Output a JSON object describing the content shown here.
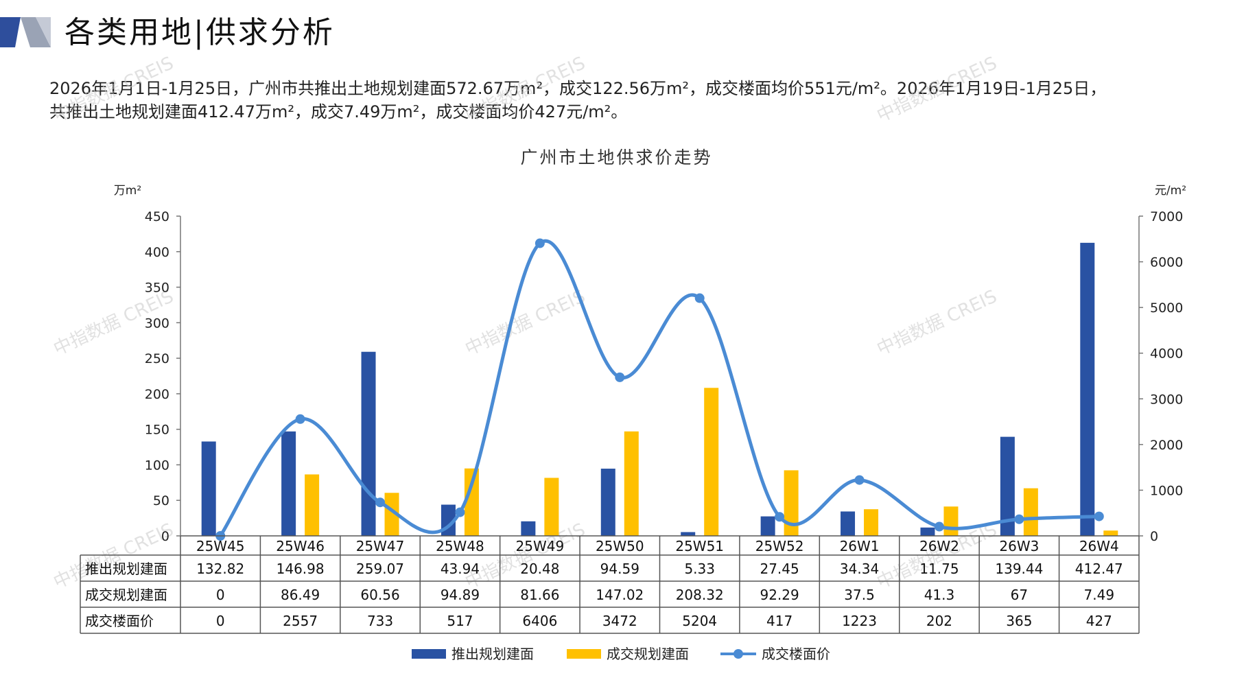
{
  "header": {
    "title": "各类用地|供求分析",
    "summary_line1": "2026年1月1日-1月25日，广州市共推出土地规划建面572.67万m²，成交122.56万m²，成交楼面均价551元/m²。2026年1月19日-1月25日，",
    "summary_line2": "共推出土地规划建面412.47万m²，成交7.49万m²，成交楼面均价427元/m²。"
  },
  "watermark": "中指数据 CREIS",
  "colors": {
    "supply_bar": "#2952A3",
    "deal_bar": "#FFC000",
    "price_line": "#4A8BD4",
    "header_dark": "#2E4E9C",
    "header_grey": "#9AA3B5",
    "grid": "#555555"
  },
  "chart_data": {
    "type": "bar",
    "title": "广州市土地供求价走势",
    "left_unit": "万m²",
    "right_unit": "元/m²",
    "categories": [
      "25W45",
      "25W46",
      "25W47",
      "25W48",
      "25W49",
      "25W50",
      "25W51",
      "25W52",
      "26W1",
      "26W2",
      "26W3",
      "26W4"
    ],
    "y_left_ticks": [
      0,
      50,
      100,
      150,
      200,
      250,
      300,
      350,
      400,
      450
    ],
    "y_right_ticks": [
      0,
      1000,
      2000,
      3000,
      4000,
      5000,
      6000,
      7000
    ],
    "ylim_left": [
      0,
      450
    ],
    "ylim_right": [
      0,
      7000
    ],
    "series": [
      {
        "name": "推出规划建面",
        "type": "bar",
        "axis": "left",
        "values": [
          132.82,
          146.98,
          259.07,
          43.94,
          20.48,
          94.59,
          5.33,
          27.45,
          34.34,
          11.75,
          139.44,
          412.47
        ],
        "display": [
          "132.82",
          "146.98",
          "259.07",
          "43.94",
          "20.48",
          "94.59",
          "5.33",
          "27.45",
          "34.34",
          "11.75",
          "139.44",
          "412.47"
        ]
      },
      {
        "name": "成交规划建面",
        "type": "bar",
        "axis": "left",
        "values": [
          0,
          86.49,
          60.56,
          94.89,
          81.66,
          147.02,
          208.32,
          92.29,
          37.5,
          41.3,
          67,
          7.49
        ],
        "display": [
          "0",
          "86.49",
          "60.56",
          "94.89",
          "81.66",
          "147.02",
          "208.32",
          "92.29",
          "37.5",
          "41.3",
          "67",
          "7.49"
        ]
      },
      {
        "name": "成交楼面价",
        "type": "line",
        "axis": "right",
        "values": [
          0,
          2557,
          733,
          517,
          6406,
          3472,
          5204,
          417,
          1223,
          202,
          365,
          427
        ],
        "display": [
          "0",
          "2557",
          "733",
          "517",
          "6406",
          "3472",
          "5204",
          "417",
          "1223",
          "202",
          "365",
          "427"
        ]
      }
    ],
    "legend": "bottom"
  }
}
